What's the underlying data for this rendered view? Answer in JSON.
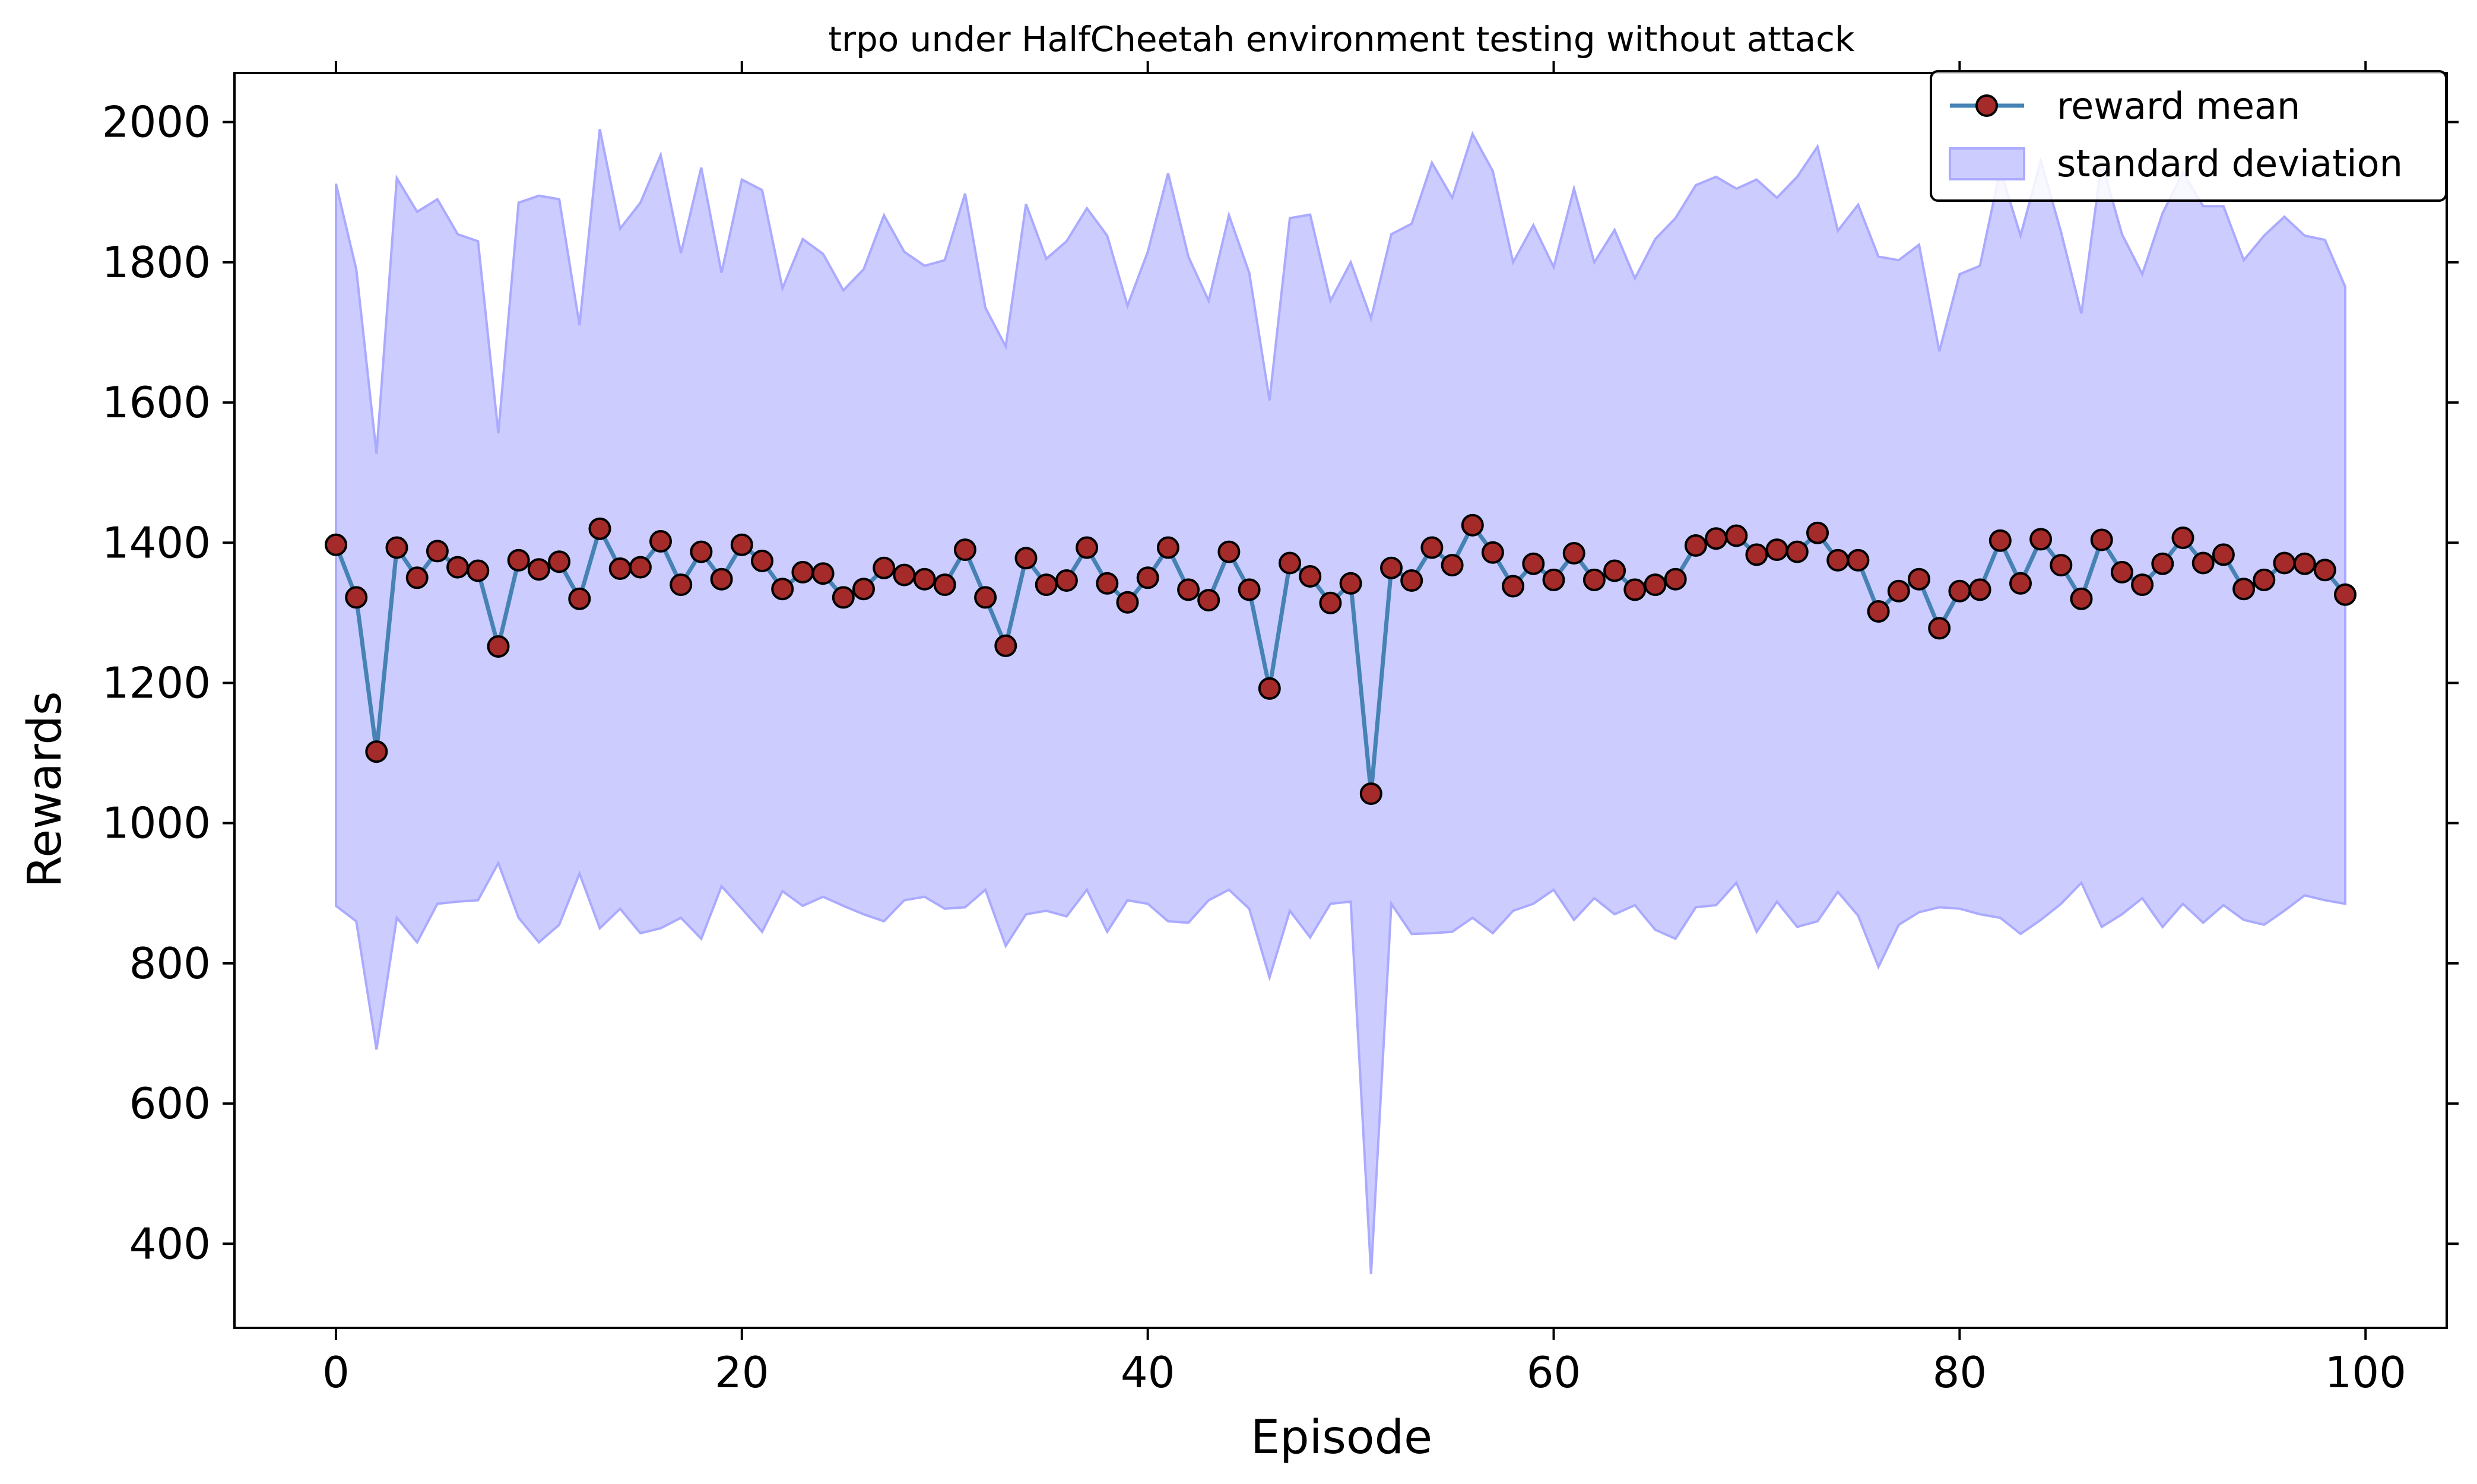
{
  "chart_data": {
    "type": "line",
    "title": "trpo under HalfCheetah environment testing without attack",
    "xlabel": "Episode",
    "ylabel": "Rewards",
    "xlim": [
      -5,
      104
    ],
    "ylim": [
      280,
      2070
    ],
    "xticks": [
      0,
      20,
      40,
      60,
      80,
      100
    ],
    "yticks": [
      400,
      600,
      800,
      1000,
      1200,
      1400,
      1600,
      1800,
      2000
    ],
    "grid": false,
    "legend_position": "top-right",
    "colors": {
      "mean_line": "#4682b4",
      "marker_fill": "#a52a2a",
      "band_fill": "#ccccff",
      "band_edge": "#aaaaff"
    },
    "series": [
      {
        "name": "reward mean",
        "x": [
          0,
          1,
          2,
          3,
          4,
          5,
          6,
          7,
          8,
          9,
          10,
          11,
          12,
          13,
          14,
          15,
          16,
          17,
          18,
          19,
          20,
          21,
          22,
          23,
          24,
          25,
          26,
          27,
          28,
          29,
          30,
          31,
          32,
          33,
          34,
          35,
          36,
          37,
          38,
          39,
          40,
          41,
          42,
          43,
          44,
          45,
          46,
          47,
          48,
          49,
          50,
          51,
          52,
          53,
          54,
          55,
          56,
          57,
          58,
          59,
          60,
          61,
          62,
          63,
          64,
          65,
          66,
          67,
          68,
          69,
          70,
          71,
          72,
          73,
          74,
          75,
          76,
          77,
          78,
          79,
          80,
          81,
          82,
          83,
          84,
          85,
          86,
          87,
          88,
          89,
          90,
          91,
          92,
          93,
          94,
          95,
          96,
          97,
          98,
          99
        ],
        "values": [
          1397,
          1322,
          1102,
          1393,
          1350,
          1388,
          1365,
          1360,
          1252,
          1375,
          1362,
          1373,
          1320,
          1420,
          1363,
          1365,
          1402,
          1340,
          1387,
          1348,
          1397,
          1374,
          1334,
          1358,
          1356,
          1322,
          1334,
          1364,
          1354,
          1348,
          1340,
          1390,
          1322,
          1253,
          1378,
          1340,
          1346,
          1393,
          1342,
          1315,
          1350,
          1393,
          1333,
          1318,
          1387,
          1333,
          1192,
          1371,
          1352,
          1314,
          1342,
          1042,
          1364,
          1346,
          1393,
          1368,
          1425,
          1386,
          1338,
          1370,
          1347,
          1385,
          1347,
          1360,
          1333,
          1340,
          1348,
          1396,
          1406,
          1410,
          1383,
          1390,
          1387,
          1414,
          1375,
          1375,
          1302,
          1331,
          1348,
          1278,
          1331,
          1333,
          1403,
          1342,
          1405,
          1368,
          1320,
          1404,
          1358,
          1340,
          1370,
          1407,
          1371,
          1383,
          1334,
          1347,
          1371,
          1370,
          1361,
          1326
        ]
      },
      {
        "name": "standard deviation",
        "x": [
          0,
          1,
          2,
          3,
          4,
          5,
          6,
          7,
          8,
          9,
          10,
          11,
          12,
          13,
          14,
          15,
          16,
          17,
          18,
          19,
          20,
          21,
          22,
          23,
          24,
          25,
          26,
          27,
          28,
          29,
          30,
          31,
          32,
          33,
          34,
          35,
          36,
          37,
          38,
          39,
          40,
          41,
          42,
          43,
          44,
          45,
          46,
          47,
          48,
          49,
          50,
          51,
          52,
          53,
          54,
          55,
          56,
          57,
          58,
          59,
          60,
          61,
          62,
          63,
          64,
          65,
          66,
          67,
          68,
          69,
          70,
          71,
          72,
          73,
          74,
          75,
          76,
          77,
          78,
          79,
          80,
          81,
          82,
          83,
          84,
          85,
          86,
          87,
          88,
          89,
          90,
          91,
          92,
          93,
          94,
          95,
          96,
          97,
          98,
          99
        ],
        "upper": [
          1912,
          1790,
          1527,
          1920,
          1872,
          1890,
          1840,
          1830,
          1556,
          1885,
          1895,
          1890,
          1710,
          1990,
          1848,
          1885,
          1953,
          1813,
          1935,
          1785,
          1918,
          1903,
          1763,
          1833,
          1812,
          1760,
          1790,
          1867,
          1815,
          1795,
          1803,
          1898,
          1735,
          1680,
          1883,
          1805,
          1830,
          1877,
          1838,
          1738,
          1815,
          1927,
          1808,
          1745,
          1867,
          1785,
          1603,
          1863,
          1868,
          1745,
          1800,
          1720,
          1840,
          1855,
          1942,
          1892,
          1983,
          1930,
          1800,
          1853,
          1793,
          1905,
          1800,
          1846,
          1777,
          1833,
          1863,
          1910,
          1922,
          1905,
          1918,
          1892,
          1922,
          1965,
          1845,
          1882,
          1808,
          1803,
          1825,
          1673,
          1783,
          1795,
          1932,
          1838,
          1945,
          1843,
          1727,
          1943,
          1840,
          1783,
          1870,
          1928,
          1880,
          1880,
          1803,
          1838,
          1865,
          1838,
          1832,
          1765
        ],
        "lower": [
          882,
          860,
          677,
          865,
          830,
          885,
          888,
          890,
          943,
          865,
          830,
          855,
          928,
          850,
          878,
          843,
          850,
          865,
          835,
          910,
          878,
          845,
          903,
          882,
          895,
          882,
          870,
          860,
          890,
          895,
          878,
          880,
          905,
          825,
          870,
          875,
          867,
          905,
          845,
          890,
          885,
          860,
          858,
          890,
          905,
          878,
          780,
          875,
          837,
          885,
          888,
          357,
          885,
          842,
          843,
          845,
          865,
          843,
          875,
          885,
          905,
          862,
          893,
          870,
          883,
          848,
          835,
          880,
          883,
          915,
          845,
          888,
          852,
          860,
          902,
          868,
          795,
          855,
          873,
          880,
          878,
          870,
          865,
          842,
          862,
          885,
          915,
          852,
          870,
          893,
          852,
          885,
          858,
          883,
          862,
          855,
          875,
          897,
          890,
          885
        ]
      }
    ]
  }
}
